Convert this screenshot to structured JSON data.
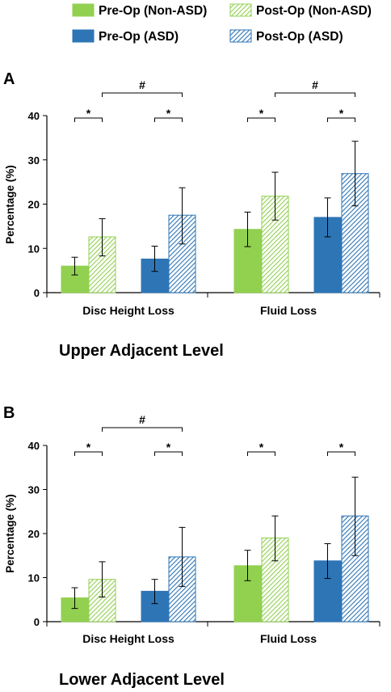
{
  "legend": [
    {
      "label": "Pre-Op (Non-ASD)",
      "fill": "solid",
      "color": "#92d050"
    },
    {
      "label": "Post-Op (Non-ASD)",
      "fill": "hatched",
      "color": "#92d050"
    },
    {
      "label": "Pre-Op (ASD)",
      "fill": "solid",
      "color": "#2e75b6"
    },
    {
      "label": "Post-Op (ASD)",
      "fill": "hatched",
      "color": "#2e75b6"
    }
  ],
  "chart_data": [
    {
      "type": "bar",
      "panel_letter": "A",
      "subtitle": "Upper Adjacent Level",
      "ylabel": "Percentage (%)",
      "ylim": [
        0,
        40
      ],
      "yticks": [
        "0",
        "10",
        "20",
        "30",
        "40"
      ],
      "categories": [
        "Disc Height Loss",
        "Fluid Loss"
      ],
      "series": [
        {
          "name": "Pre-Op (Non-ASD)",
          "values": [
            6.0,
            14.3
          ],
          "err_low": [
            4.0,
            10.4
          ],
          "err_high": [
            8.0,
            18.2
          ]
        },
        {
          "name": "Post-Op (Non-ASD)",
          "values": [
            12.6,
            21.8
          ],
          "err_low": [
            8.3,
            16.4
          ],
          "err_high": [
            16.7,
            27.2
          ]
        },
        {
          "name": "Pre-Op (ASD)",
          "values": [
            7.6,
            17.0
          ],
          "err_low": [
            4.8,
            12.6
          ],
          "err_high": [
            10.5,
            21.4
          ]
        },
        {
          "name": "Post-Op (ASD)",
          "values": [
            17.5,
            26.9
          ],
          "err_low": [
            11.0,
            19.6
          ],
          "err_high": [
            23.7,
            34.2
          ]
        }
      ],
      "annotations": [
        {
          "symbol": "*",
          "category": 0,
          "from_series": 0,
          "to_series": 1
        },
        {
          "symbol": "*",
          "category": 0,
          "from_series": 2,
          "to_series": 3
        },
        {
          "symbol": "*",
          "category": 1,
          "from_series": 0,
          "to_series": 1
        },
        {
          "symbol": "*",
          "category": 1,
          "from_series": 2,
          "to_series": 3
        },
        {
          "symbol": "#",
          "category": 0,
          "from_series": 1,
          "to_series": 3
        },
        {
          "symbol": "#",
          "category": 1,
          "from_series": 1,
          "to_series": 3
        }
      ],
      "grid": false
    },
    {
      "type": "bar",
      "panel_letter": "B",
      "subtitle": "Lower Adjacent Level",
      "ylabel": "Percentage (%)",
      "ylim": [
        0,
        40
      ],
      "yticks": [
        "0",
        "10",
        "20",
        "30",
        "40"
      ],
      "categories": [
        "Disc Height Loss",
        "Fluid Loss"
      ],
      "series": [
        {
          "name": "Pre-Op (Non-ASD)",
          "values": [
            5.4,
            12.7
          ],
          "err_low": [
            3.0,
            9.3
          ],
          "err_high": [
            7.7,
            16.2
          ]
        },
        {
          "name": "Post-Op (Non-ASD)",
          "values": [
            9.6,
            19.0
          ],
          "err_low": [
            5.6,
            13.8
          ],
          "err_high": [
            13.6,
            24.0
          ]
        },
        {
          "name": "Pre-Op (ASD)",
          "values": [
            6.9,
            13.8
          ],
          "err_low": [
            4.1,
            9.8
          ],
          "err_high": [
            9.6,
            17.7
          ]
        },
        {
          "name": "Post-Op (ASD)",
          "values": [
            14.7,
            24.0
          ],
          "err_low": [
            8.0,
            15.0
          ],
          "err_high": [
            21.4,
            32.8
          ]
        }
      ],
      "annotations": [
        {
          "symbol": "*",
          "category": 0,
          "from_series": 0,
          "to_series": 1
        },
        {
          "symbol": "*",
          "category": 0,
          "from_series": 2,
          "to_series": 3
        },
        {
          "symbol": "*",
          "category": 1,
          "from_series": 0,
          "to_series": 1
        },
        {
          "symbol": "*",
          "category": 1,
          "from_series": 2,
          "to_series": 3
        },
        {
          "symbol": "#",
          "category": 0,
          "from_series": 1,
          "to_series": 3
        }
      ],
      "grid": false
    }
  ]
}
